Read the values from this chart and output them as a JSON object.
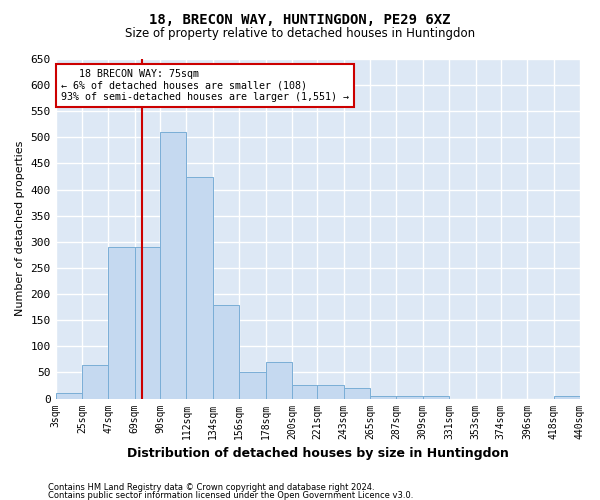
{
  "title1": "18, BRECON WAY, HUNTINGDON, PE29 6XZ",
  "title2": "Size of property relative to detached houses in Huntingdon",
  "xlabel": "Distribution of detached houses by size in Huntingdon",
  "ylabel": "Number of detached properties",
  "footer1": "Contains HM Land Registry data © Crown copyright and database right 2024.",
  "footer2": "Contains public sector information licensed under the Open Government Licence v3.0.",
  "annotation_title": "18 BRECON WAY: 75sqm",
  "annotation_line1": "← 6% of detached houses are smaller (108)",
  "annotation_line2": "93% of semi-detached houses are larger (1,551) →",
  "property_size": 75,
  "bar_color": "#c5d9f0",
  "bar_edge_color": "#7aaed6",
  "vline_color": "#cc0000",
  "annotation_box_color": "#ffffff",
  "annotation_box_edge": "#cc0000",
  "plot_bg_color": "#dde8f5",
  "fig_bg_color": "#ffffff",
  "grid_color": "#ffffff",
  "bins": [
    3,
    25,
    47,
    69,
    90,
    112,
    134,
    156,
    178,
    200,
    221,
    243,
    265,
    287,
    309,
    331,
    353,
    374,
    396,
    418,
    440
  ],
  "counts": [
    10,
    65,
    290,
    290,
    510,
    425,
    180,
    50,
    70,
    25,
    25,
    20,
    5,
    5,
    5,
    0,
    0,
    0,
    0,
    5
  ],
  "ylim": [
    0,
    650
  ],
  "yticks": [
    0,
    50,
    100,
    150,
    200,
    250,
    300,
    350,
    400,
    450,
    500,
    550,
    600,
    650
  ]
}
